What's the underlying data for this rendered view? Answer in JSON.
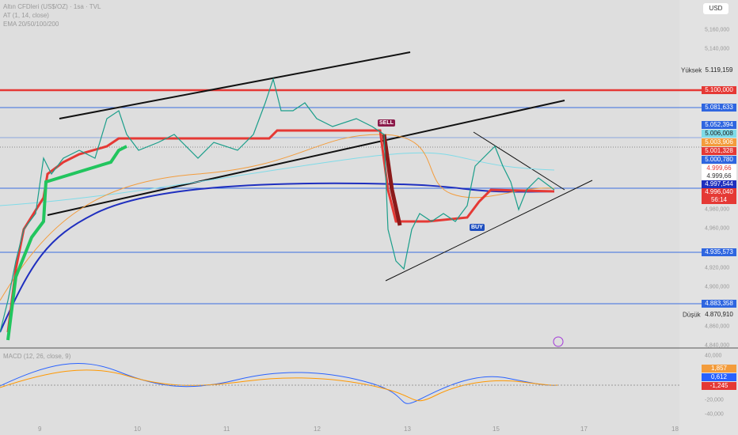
{
  "header": {
    "symbol": "Altın CFDleri (US$/OZ) · 1sa · TVL",
    "indicator_1": "AT (1, 14, close)",
    "indicator_2": "EMA 20/50/100/200"
  },
  "currency": "USD",
  "price_axis": [
    "5,160,000",
    "5,140,000",
    "4,980,000",
    "4,960,000",
    "4,920,000",
    "4,900,000",
    "4,860,000",
    "4,840,000"
  ],
  "price_labels": {
    "high_label": "Yüksek",
    "high": "5.119,159",
    "l1": "5.100,000",
    "l2": "5.081,633",
    "l3": "5.052,394",
    "l4": "5.006,008",
    "l5": "5.003,906",
    "l6": "5.001,328",
    "l7": "5.000,780",
    "l8": "4.999,66",
    "l9": "4.999,66",
    "l10": "4.997,544",
    "l11": "4.996,040",
    "countdown": "56:14",
    "l12": "4.935,573",
    "l13": "4.883,358",
    "low_label": "Düşük",
    "low": "4.870,910"
  },
  "signals": {
    "sell": "SELL",
    "buy": "BUY"
  },
  "macd": {
    "title": "MACD (12, 26, close, 9)",
    "axis": [
      "40,000",
      "-20,000",
      "-40,000"
    ],
    "hist": "1,857",
    "macd": "0,612",
    "signal": "-1,245"
  },
  "time_axis": [
    "9",
    "10",
    "11",
    "12",
    "13",
    "15",
    "17",
    "18"
  ]
}
